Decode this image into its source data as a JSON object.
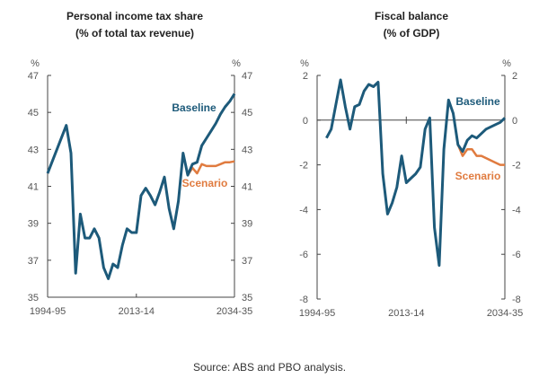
{
  "chart_data": [
    {
      "type": "line",
      "title": "Personal income tax share",
      "subtitle": "(% of total tax revenue)",
      "unit": "%",
      "ylim": [
        35,
        47
      ],
      "yticks": [
        35,
        37,
        39,
        41,
        43,
        45,
        47
      ],
      "xlim": [
        1994,
        2034
      ],
      "xtick_labels": [
        "1994-95",
        "2013-14",
        "2034-35"
      ],
      "grid": false,
      "series": [
        {
          "name": "Baseline",
          "color": "#1d5a7a",
          "x": [
            1994,
            1998,
            1999,
            2000,
            2001,
            2002,
            2003,
            2004,
            2005,
            2006,
            2007,
            2008,
            2009,
            2010,
            2011,
            2012,
            2013,
            2014,
            2015,
            2016,
            2017,
            2018,
            2019,
            2020,
            2021,
            2022,
            2023,
            2024,
            2025,
            2026,
            2027,
            2028,
            2029,
            2030,
            2031,
            2032,
            2033,
            2034
          ],
          "y": [
            41.7,
            44.3,
            42.8,
            36.3,
            39.5,
            38.2,
            38.2,
            38.7,
            38.2,
            36.6,
            36.0,
            36.8,
            36.6,
            37.8,
            38.7,
            38.5,
            38.5,
            40.5,
            40.9,
            40.5,
            40.0,
            40.7,
            41.5,
            39.8,
            38.7,
            40.2,
            42.8,
            41.6,
            42.2,
            42.3,
            43.2,
            43.6,
            44.0,
            44.4,
            44.9,
            45.3,
            45.6,
            46.0
          ]
        },
        {
          "name": "Scenario",
          "color": "#e07b3f",
          "x": [
            2024,
            2025,
            2026,
            2027,
            2028,
            2029,
            2030,
            2031,
            2032,
            2033,
            2034
          ],
          "y": [
            41.6,
            42.0,
            41.7,
            42.2,
            42.1,
            42.1,
            42.1,
            42.2,
            42.3,
            42.3,
            42.35
          ]
        }
      ]
    },
    {
      "type": "line",
      "title": "Fiscal balance",
      "subtitle": "(% of GDP)",
      "unit": "%",
      "ylim": [
        -8,
        2
      ],
      "yticks": [
        -8,
        -6,
        -4,
        -2,
        0,
        2
      ],
      "xlim": [
        1994,
        2034
      ],
      "xtick_labels": [
        "1994-95",
        "2013-14",
        "2034-35"
      ],
      "grid": false,
      "series": [
        {
          "name": "Baseline",
          "color": "#1d5a7a",
          "x": [
            1996,
            1997,
            1999,
            2000,
            2001,
            2002,
            2003,
            2004,
            2005,
            2006,
            2007,
            2008,
            2009,
            2010,
            2011,
            2012,
            2013,
            2014,
            2015,
            2016,
            2017,
            2018,
            2019,
            2020,
            2021,
            2022,
            2023,
            2024,
            2025,
            2026,
            2027,
            2028,
            2029,
            2030,
            2031,
            2032,
            2033,
            2034
          ],
          "y": [
            -0.8,
            -0.4,
            1.8,
            0.6,
            -0.4,
            0.6,
            0.7,
            1.3,
            1.6,
            1.5,
            1.7,
            -2.4,
            -4.2,
            -3.7,
            -3.0,
            -1.6,
            -2.8,
            -2.6,
            -2.4,
            -2.1,
            -0.4,
            0.1,
            -4.8,
            -6.5,
            -1.3,
            0.9,
            0.3,
            -1.1,
            -1.4,
            -0.9,
            -0.7,
            -0.8,
            -0.6,
            -0.4,
            -0.3,
            -0.2,
            -0.1,
            0.1
          ]
        },
        {
          "name": "Scenario",
          "color": "#e07b3f",
          "x": [
            2024,
            2025,
            2026,
            2027,
            2028,
            2029,
            2030,
            2031,
            2032,
            2033,
            2034
          ],
          "y": [
            -1.1,
            -1.6,
            -1.3,
            -1.3,
            -1.6,
            -1.6,
            -1.7,
            -1.8,
            -1.9,
            -2.0,
            -2.0
          ]
        }
      ]
    }
  ],
  "source": "Source: ABS and PBO analysis."
}
